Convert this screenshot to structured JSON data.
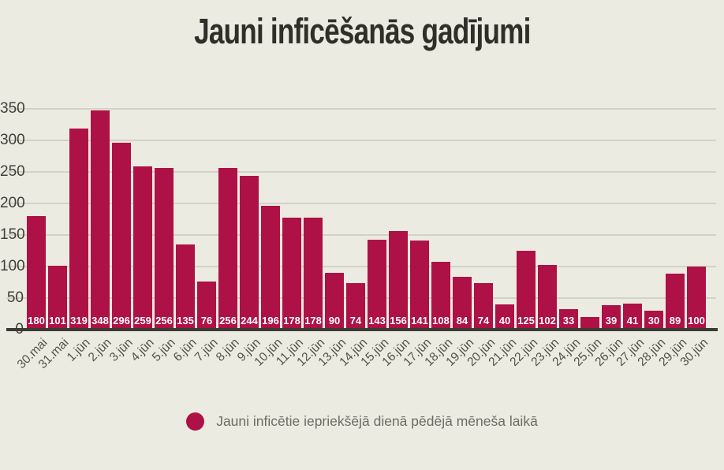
{
  "title": "Jauni inficēšanās gadījumi",
  "legend": {
    "label": "Jauni inficētie iepriekšējā dienā pēdējā mēneša laikā"
  },
  "colors": {
    "background": "#ecebe1",
    "bar": "#ae1145",
    "grid": "#d3d2c7",
    "axis": "#3b3b36",
    "title_text": "#2f2f2a",
    "ytick_text": "#403f3a",
    "xtick_text": "#52524b",
    "legend_text": "#6d6d66",
    "bar_label_text": "#ffffff"
  },
  "chart_data": {
    "type": "bar",
    "title": "Jauni inficēšanās gadījumi",
    "xlabel": "",
    "ylabel": "",
    "ylim": [
      0,
      350
    ],
    "yticks": [
      0,
      50,
      100,
      150,
      200,
      250,
      300,
      350
    ],
    "grid": true,
    "legend_position": "bottom",
    "legend_entries": [
      "Jauni inficētie iepriekšējā dienā pēdējā mēneša laikā"
    ],
    "categories": [
      "30.mai",
      "31.mai",
      "1.jūn",
      "2.jūn",
      "3.jūn",
      "4.jūn",
      "5.jūn",
      "6.jūn",
      "7.jūn",
      "8.jūn",
      "9.jūn",
      "10.jūn",
      "11.jūn",
      "12.jūn",
      "13.jūn",
      "14.jūn",
      "15.jūn",
      "16.jūn",
      "17.jūn",
      "18.jūn",
      "19.jūn",
      "20.jūn",
      "21.jūn",
      "22.jūn",
      "23.jūn",
      "24.jūn",
      "25.jūn",
      "26.jūn",
      "27.jūn",
      "28.jūn",
      "29.jūn",
      "30.jūn"
    ],
    "values": [
      180,
      101,
      319,
      348,
      296,
      259,
      256,
      135,
      76,
      256,
      244,
      196,
      178,
      178,
      90,
      74,
      143,
      156,
      141,
      108,
      84,
      74,
      40,
      125,
      102,
      33,
      20,
      39,
      41,
      30,
      89,
      100
    ],
    "bar_labels": [
      "180",
      "101",
      "319",
      "348",
      "296",
      "259",
      "256",
      "135",
      "76",
      "256",
      "244",
      "196",
      "178",
      "178",
      "90",
      "74",
      "143",
      "156",
      "141",
      "108",
      "84",
      "74",
      "40",
      "125",
      "102",
      "33",
      "",
      "39",
      "41",
      "30",
      "89",
      "100"
    ]
  }
}
